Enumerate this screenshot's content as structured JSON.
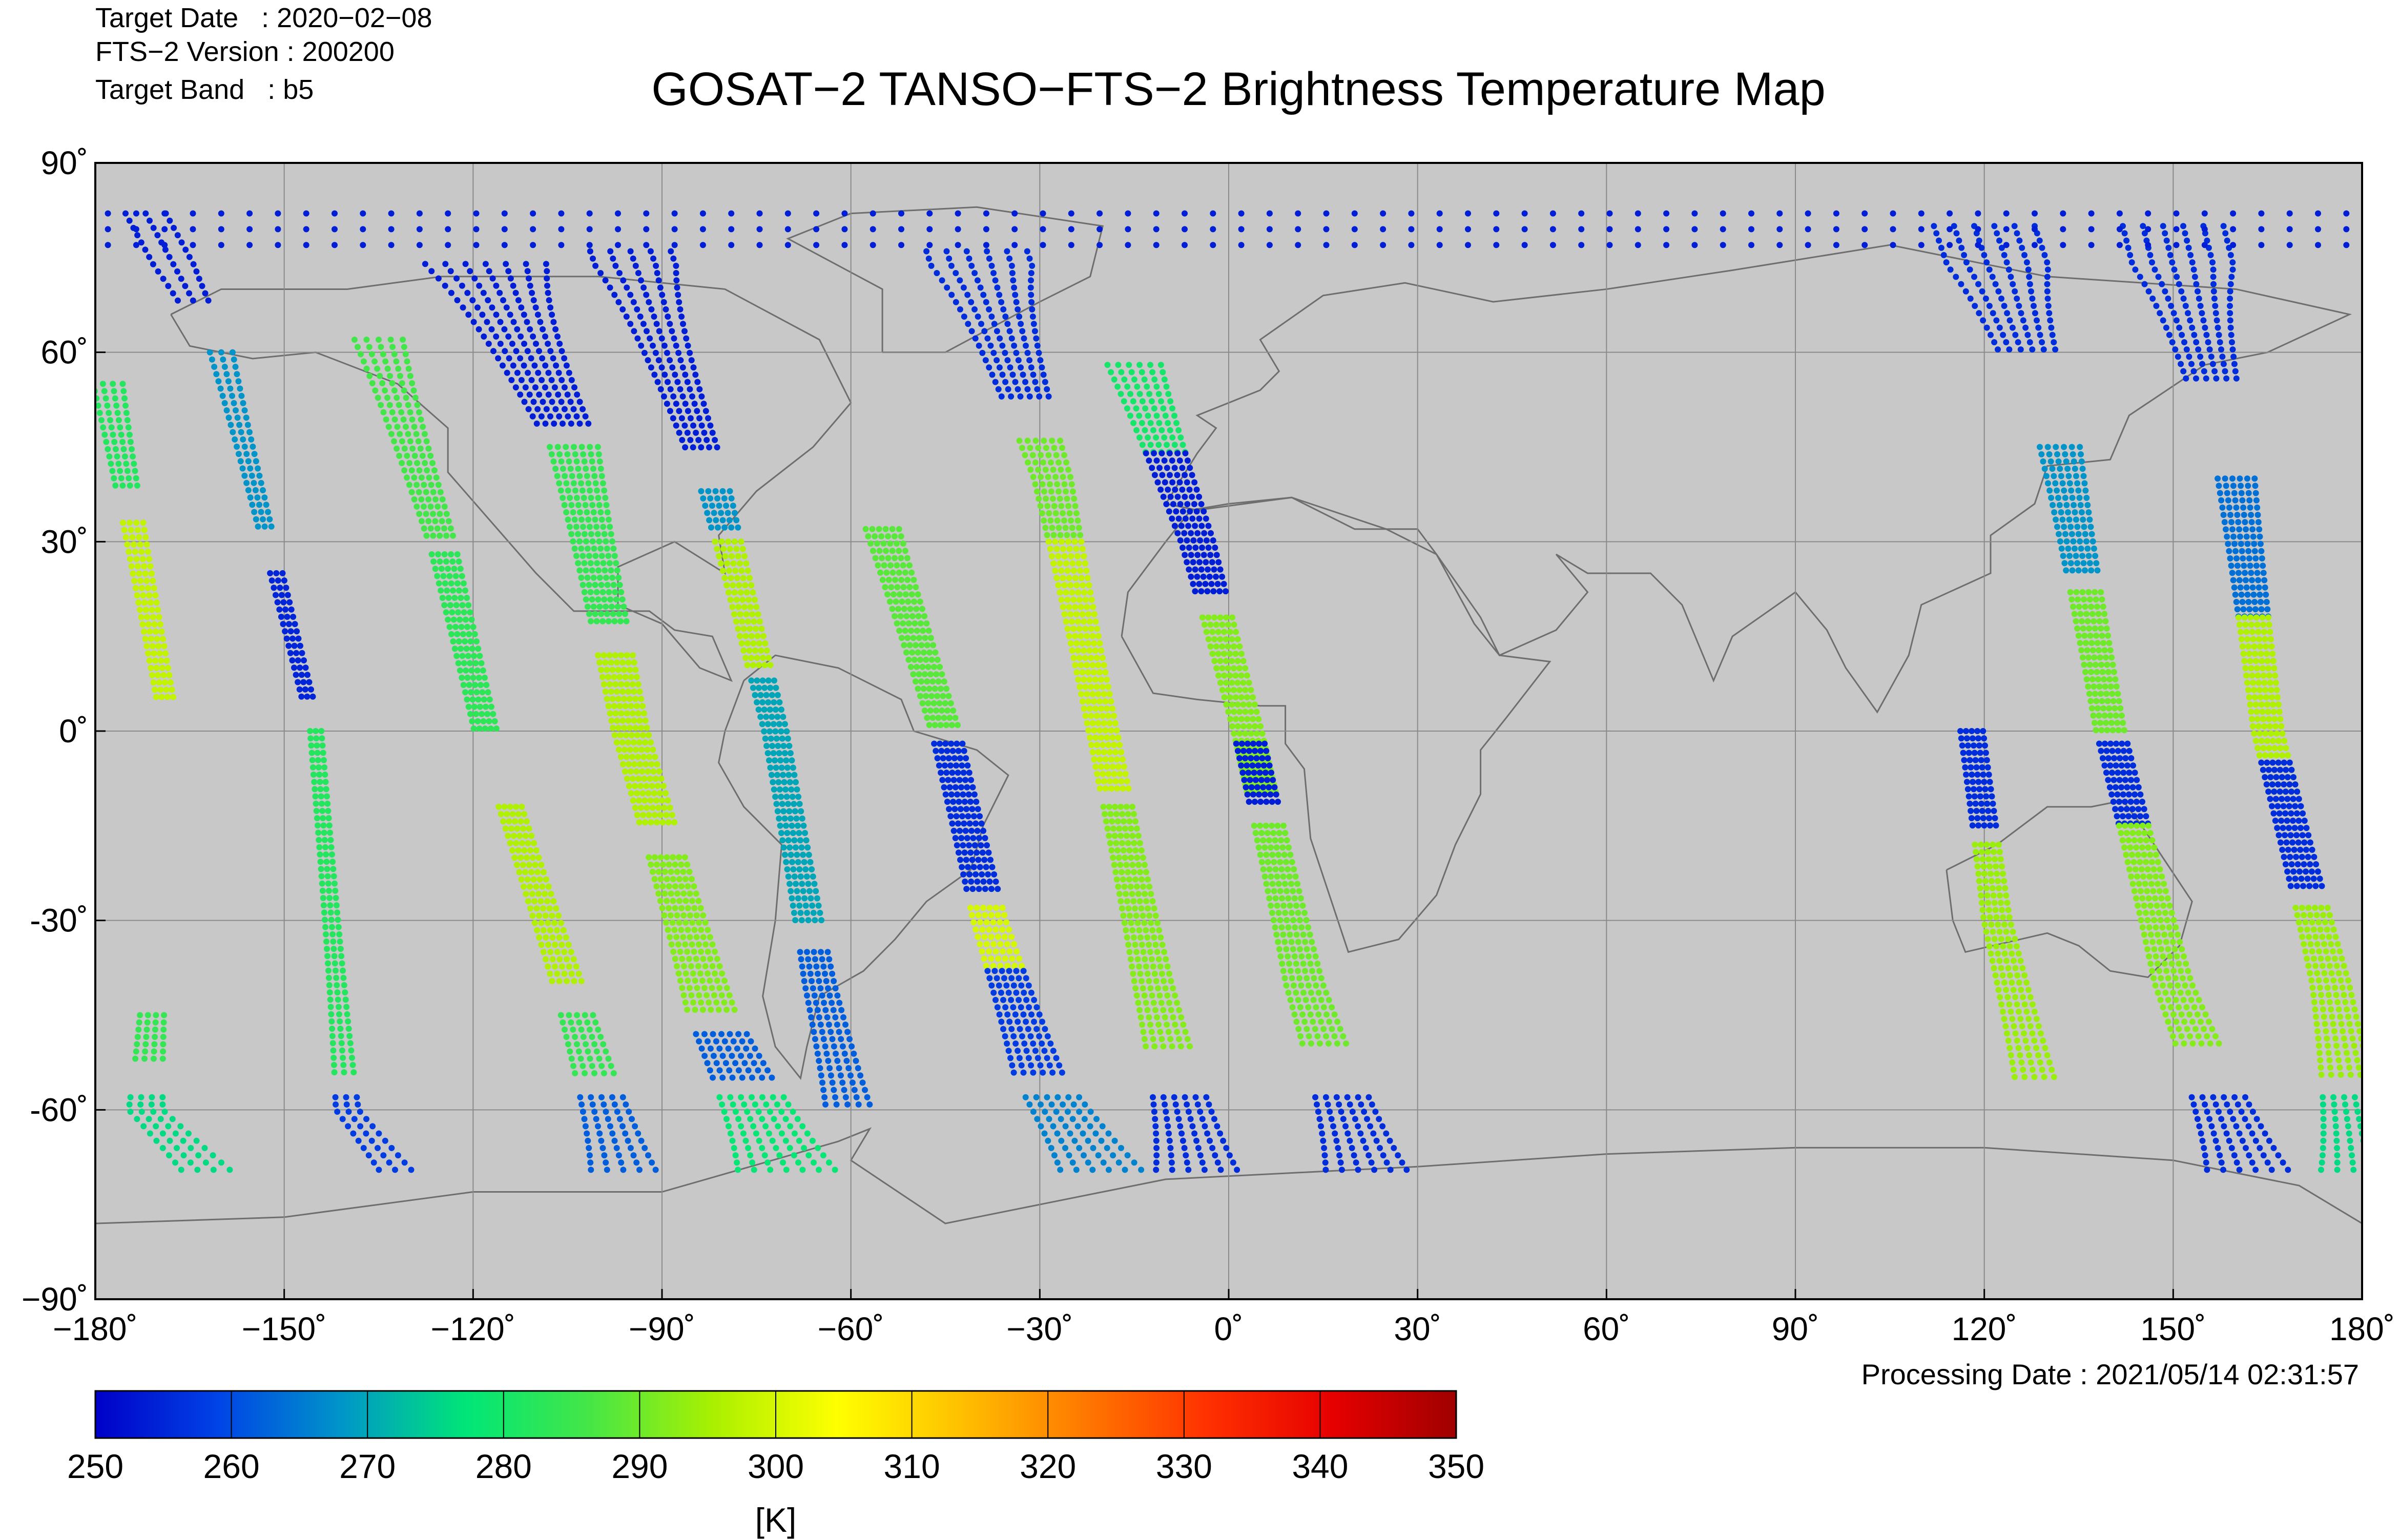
{
  "header": {
    "target_date": "Target Date   : 2020−02−08",
    "version": "FTS−2 Version : 200200",
    "target_band": "Target Band   : b5",
    "title": "GOSAT−2 TANSO−FTS−2 Brightness Temperature Map"
  },
  "footer": {
    "processing_date": "Processing Date : 2021/05/14 02:31:57"
  },
  "map": {
    "background_color": "#c8c8c8",
    "grid_color": "#8a8a8a",
    "coast_color": "#6e6e6e",
    "lon_range": [
      -180,
      180
    ],
    "lat_range": [
      -90,
      90
    ],
    "lon_ticks": [
      -180,
      -150,
      -120,
      -90,
      -60,
      -30,
      0,
      30,
      60,
      90,
      120,
      150,
      180
    ],
    "lat_ticks": [
      90,
      60,
      30,
      0,
      -30,
      -60,
      -90
    ],
    "lon_tick_labels": [
      "−180˚",
      "−150˚",
      "−120˚",
      "−90˚",
      "−60˚",
      "−30˚",
      "0˚",
      "30˚",
      "60˚",
      "90˚",
      "120˚",
      "150˚",
      "180˚"
    ],
    "lat_tick_labels": [
      "90˚",
      "60˚",
      "30˚",
      "0˚",
      "-30˚",
      "-60˚",
      "−90˚"
    ]
  },
  "colorbar": {
    "range": [
      250,
      350
    ],
    "ticks": [
      250,
      260,
      270,
      280,
      290,
      300,
      310,
      320,
      330,
      340,
      350
    ],
    "tick_labels": [
      "250",
      "260",
      "270",
      "280",
      "290",
      "300",
      "310",
      "320",
      "330",
      "340",
      "350"
    ],
    "unit": "[K]",
    "stops": [
      "#0000c8",
      "#0044e6",
      "#0096c8",
      "#00e678",
      "#46e646",
      "#aaf000",
      "#ffff00",
      "#ffc000",
      "#ff7800",
      "#ff3000",
      "#e60000",
      "#a00000"
    ]
  },
  "chart_data": {
    "type": "scatter",
    "title": "GOSAT−2 TANSO−FTS−2 Brightness Temperature Map",
    "xlim": [
      -180,
      180
    ],
    "ylim": [
      -90,
      90
    ],
    "value_unit": "[K]",
    "value_range": [
      250,
      350
    ],
    "swaths": [
      {
        "segments": [
          {
            "lat": [
              55,
              38
            ],
            "t": 282
          },
          {
            "lat": [
              33,
              5
            ],
            "t": 298
          },
          {
            "lat": [
              -45,
              -52
            ],
            "t": 284
          },
          {
            "lat": [
              -58,
              -70
            ],
            "t": 276
          }
        ],
        "lon_at_lat": [
          [
            55,
            -178
          ],
          [
            0,
            -168
          ],
          [
            -60,
            -172
          ],
          [
            -70,
            -162
          ]
        ],
        "cols": 4
      },
      {
        "segments": [
          {
            "lat": [
              82,
              68
            ],
            "t": 254
          },
          {
            "lat": [
              60,
              32
            ],
            "t": 268
          },
          {
            "lat": [
              25,
              5
            ],
            "t": 255
          },
          {
            "lat": [
              0,
              -55
            ],
            "t": 282
          },
          {
            "lat": [
              -58,
              -70
            ],
            "t": 258
          }
        ],
        "lon_at_lat": [
          [
            82,
            -172
          ],
          [
            60,
            -160
          ],
          [
            0,
            -145
          ],
          [
            -60,
            -140
          ],
          [
            -70,
            -132
          ]
        ],
        "cols": 3
      },
      {
        "segments": [
          {
            "lat": [
              62,
              30
            ],
            "t": 286
          },
          {
            "lat": [
              28,
              0
            ],
            "t": 283
          },
          {
            "lat": [
              -12,
              -40
            ],
            "t": 296
          },
          {
            "lat": [
              -45,
              -55
            ],
            "t": 284
          },
          {
            "lat": [
              -58,
              -70
            ],
            "t": 262
          }
        ],
        "lon_at_lat": [
          [
            62,
            -135
          ],
          [
            30,
            -125
          ],
          [
            0,
            -118
          ],
          [
            -40,
            -105
          ],
          [
            -70,
            -96
          ]
        ],
        "cols": 5
      },
      {
        "segments": [
          {
            "lat": [
              74,
              48
            ],
            "t": 254
          },
          {
            "lat": [
              45,
              17
            ],
            "t": 284
          },
          {
            "lat": [
              12,
              -15
            ],
            "t": 296
          },
          {
            "lat": [
              -20,
              -45
            ],
            "t": 292
          },
          {
            "lat": [
              -48,
              -56
            ],
            "t": 262
          },
          {
            "lat": [
              -58,
              -70
            ],
            "t": 278
          }
        ],
        "lon_at_lat": [
          [
            74,
            -118
          ],
          [
            45,
            -104
          ],
          [
            0,
            -95
          ],
          [
            -45,
            -82
          ],
          [
            -70,
            -70
          ]
        ],
        "cols": 7
      },
      {
        "segments": [
          {
            "lat": [
              76,
              44
            ],
            "t": 254
          },
          {
            "lat": [
              38,
              32
            ],
            "t": 268
          },
          {
            "lat": [
              30,
              10
            ],
            "t": 296
          },
          {
            "lat": [
              8,
              -30
            ],
            "t": 270
          },
          {
            "lat": [
              -35,
              -60
            ],
            "t": 262
          }
        ],
        "lon_at_lat": [
          [
            76,
            -95
          ],
          [
            40,
            -82
          ],
          [
            0,
            -72
          ],
          [
            -40,
            -65
          ],
          [
            -70,
            -58
          ]
        ],
        "cols": 5
      },
      {
        "segments": [
          {
            "lat": [
              32,
              0
            ],
            "t": 288
          },
          {
            "lat": [
              -2,
              -25
            ],
            "t": 256
          },
          {
            "lat": [
              -28,
              -38
            ],
            "t": 300
          },
          {
            "lat": [
              -38,
              -55
            ],
            "t": 258
          },
          {
            "lat": [
              -58,
              -70
            ],
            "t": 266
          }
        ],
        "lon_at_lat": [
          [
            32,
            -55
          ],
          [
            0,
            -45
          ],
          [
            -30,
            -38
          ],
          [
            -55,
            -30
          ],
          [
            -70,
            -20
          ]
        ],
        "cols": 6
      },
      {
        "segments": [
          {
            "lat": [
              76,
              52
            ],
            "t": 256
          },
          {
            "lat": [
              46,
              30
            ],
            "t": 290
          },
          {
            "lat": [
              30,
              -10
            ],
            "t": 298
          },
          {
            "lat": [
              -12,
              -50
            ],
            "t": 292
          },
          {
            "lat": [
              -58,
              -70
            ],
            "t": 256
          }
        ],
        "lon_at_lat": [
          [
            76,
            -40
          ],
          [
            40,
            -28
          ],
          [
            0,
            -20
          ],
          [
            -40,
            -12
          ],
          [
            -70,
            -5
          ]
        ],
        "cols": 6
      },
      {
        "segments": [
          {
            "lat": [
              58,
              44
            ],
            "t": 280
          },
          {
            "lat": [
              44,
              22
            ],
            "t": 254
          },
          {
            "lat": [
              18,
              -10
            ],
            "t": 292
          },
          {
            "lat": [
              -2,
              -12
            ],
            "t": 254
          },
          {
            "lat": [
              -15,
              -50
            ],
            "t": 290
          },
          {
            "lat": [
              -58,
              -70
            ],
            "t": 256
          }
        ],
        "lon_at_lat": [
          [
            58,
            -15
          ],
          [
            30,
            -5
          ],
          [
            0,
            3
          ],
          [
            -40,
            12
          ],
          [
            -70,
            22
          ]
        ],
        "cols": 6
      },
      {
        "segments": [
          {
            "lat": [
              80,
              60
            ],
            "t": 256
          },
          {
            "lat": [
              45,
              25
            ],
            "t": 268
          },
          {
            "lat": [
              22,
              0
            ],
            "t": 290
          },
          {
            "lat": [
              -2,
              -15
            ],
            "t": 256
          },
          {
            "lat": [
              -15,
              -50
            ],
            "t": 292
          },
          {
            "lat": [
              -58,
              -70
            ],
            "t": 256
          }
        ],
        "lon_at_lat": [
          [
            80,
            120
          ],
          [
            45,
            132
          ],
          [
            0,
            140
          ],
          [
            -40,
            150
          ],
          [
            -70,
            162
          ]
        ],
        "cols": 6
      },
      {
        "segments": [
          {
            "lat": [
              80,
              55
            ],
            "t": 256
          },
          {
            "lat": [
              40,
              18
            ],
            "t": 264
          },
          {
            "lat": [
              18,
              -10
            ],
            "t": 296
          },
          {
            "lat": [
              -5,
              -25
            ],
            "t": 256
          },
          {
            "lat": [
              -28,
              -55
            ],
            "t": 294
          },
          {
            "lat": [
              -58,
              -70
            ],
            "t": 276
          }
        ],
        "lon_at_lat": [
          [
            80,
            150
          ],
          [
            40,
            160
          ],
          [
            0,
            165
          ],
          [
            -40,
            175
          ],
          [
            -70,
            180
          ]
        ],
        "cols": 6
      },
      {
        "segments": [
          {
            "lat": [
              0,
              -15
            ],
            "t": 256
          },
          {
            "lat": [
              -18,
              -55
            ],
            "t": 294
          }
        ],
        "lon_at_lat": [
          [
            0,
            118
          ],
          [
            -30,
            122
          ],
          [
            -55,
            128
          ]
        ],
        "cols": 5
      }
    ]
  }
}
